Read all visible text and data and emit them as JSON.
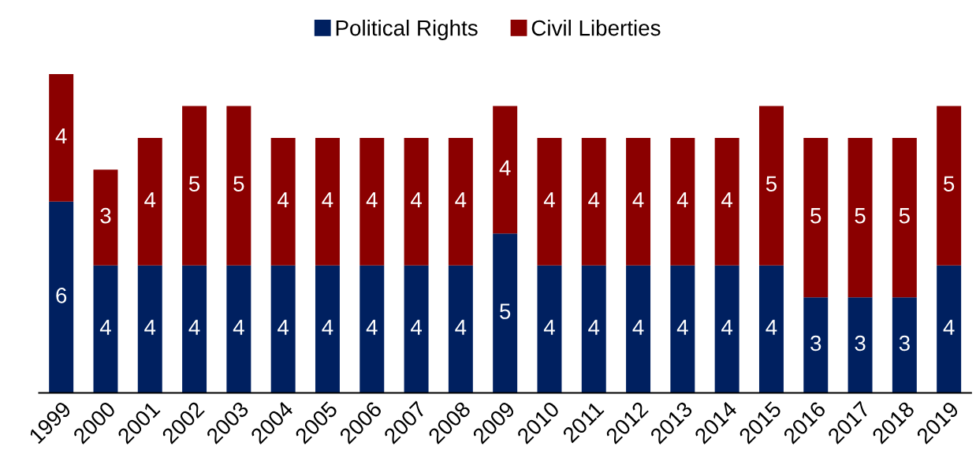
{
  "chart_data": {
    "type": "bar",
    "stacked": true,
    "data_labels": true,
    "legend": "top",
    "grid": false,
    "categories": [
      "1999",
      "2000",
      "2001",
      "2002",
      "2003",
      "2004",
      "2005",
      "2006",
      "2007",
      "2008",
      "2009",
      "2010",
      "2011",
      "2012",
      "2013",
      "2014",
      "2015",
      "2016",
      "2017",
      "2018",
      "2019"
    ],
    "series": [
      {
        "name": "Political Rights",
        "color": "#002060",
        "values": [
          6,
          4,
          4,
          4,
          4,
          4,
          4,
          4,
          4,
          4,
          5,
          4,
          4,
          4,
          4,
          4,
          4,
          3,
          3,
          3,
          4
        ]
      },
      {
        "name": "Civil Liberties",
        "color": "#8b0000",
        "values": [
          4,
          3,
          4,
          5,
          5,
          4,
          4,
          4,
          4,
          4,
          4,
          4,
          4,
          4,
          4,
          4,
          5,
          5,
          5,
          5,
          5
        ]
      }
    ]
  }
}
